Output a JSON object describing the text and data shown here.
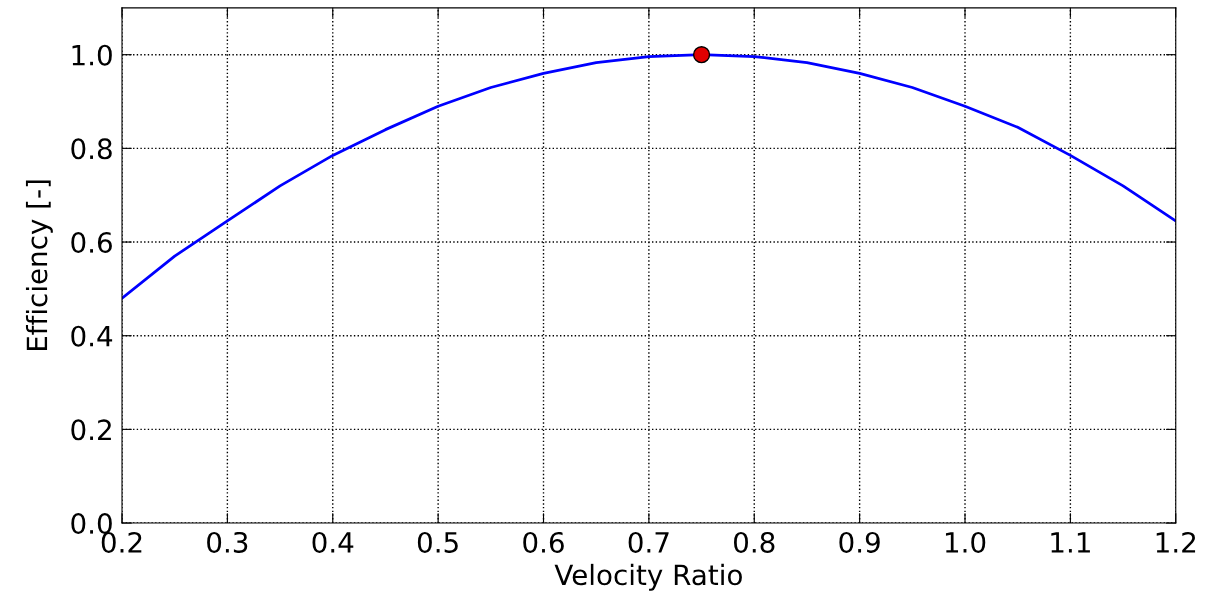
{
  "chart_data": {
    "type": "line",
    "xlabel": "Velocity Ratio",
    "ylabel": "Efficiency [-]",
    "xlim": [
      0.2,
      1.2
    ],
    "ylim": [
      0,
      1.1
    ],
    "xticks": [
      {
        "value": 0.2,
        "label": "0.2"
      },
      {
        "value": 0.3,
        "label": "0.3"
      },
      {
        "value": 0.4,
        "label": "0.4"
      },
      {
        "value": 0.5,
        "label": "0.5"
      },
      {
        "value": 0.6,
        "label": "0.6"
      },
      {
        "value": 0.7,
        "label": "0.7"
      },
      {
        "value": 0.8,
        "label": "0.8"
      },
      {
        "value": 0.9,
        "label": "0.9"
      },
      {
        "value": 1.0,
        "label": "1.0"
      },
      {
        "value": 1.1,
        "label": "1.1"
      },
      {
        "value": 1.2,
        "label": "1.2"
      }
    ],
    "yticks": [
      {
        "value": 0,
        "label": "0.0"
      },
      {
        "value": 0.2,
        "label": "0.2"
      },
      {
        "value": 0.4,
        "label": "0.4"
      },
      {
        "value": 0.6,
        "label": "0.6"
      },
      {
        "value": 0.8,
        "label": "0.8"
      },
      {
        "value": 1.0,
        "label": "1.0"
      }
    ],
    "grid": true,
    "line_style": "solid",
    "series": [
      {
        "color": "#0000ff",
        "marker": "none",
        "x": [
          0.2,
          0.25,
          0.3,
          0.35,
          0.4,
          0.45,
          0.5,
          0.55,
          0.6,
          0.65,
          0.7,
          0.75,
          0.8,
          0.85,
          0.9,
          0.95,
          1.0,
          1.05,
          1.1,
          1.15,
          1.2
        ],
        "values": [
          0.48,
          0.57,
          0.645,
          0.72,
          0.785,
          0.84,
          0.89,
          0.93,
          0.96,
          0.983,
          0.996,
          1.0,
          0.996,
          0.983,
          0.96,
          0.93,
          0.89,
          0.845,
          0.785,
          0.72,
          0.645
        ]
      },
      {
        "type": "scatter",
        "color": "#e00000",
        "marker": "circle",
        "x": [
          0.75
        ],
        "values": [
          1.0
        ]
      }
    ]
  }
}
